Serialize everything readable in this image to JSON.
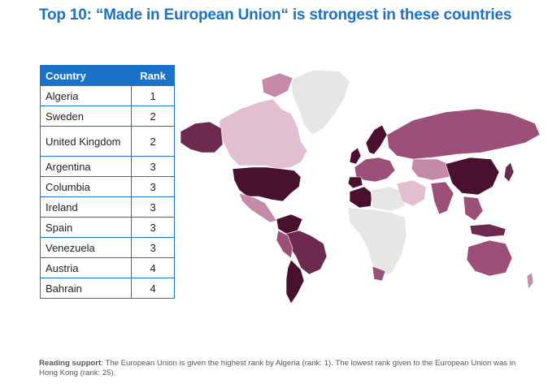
{
  "title": "Top 10: “Made in European Union“ is strongest in these countries",
  "chart_data": {
    "type": "table",
    "columns": [
      "Country",
      "Rank"
    ],
    "rows": [
      {
        "country": "Algeria",
        "rank": "1"
      },
      {
        "country": "Sweden",
        "rank": "2"
      },
      {
        "country": "United Kingdom",
        "rank": "2"
      },
      {
        "country": "Argentina",
        "rank": "3"
      },
      {
        "country": "Columbia",
        "rank": "3"
      },
      {
        "country": "Ireland",
        "rank": "3"
      },
      {
        "country": "Spain",
        "rank": "3"
      },
      {
        "country": "Venezuela",
        "rank": "3"
      },
      {
        "country": "Austria",
        "rank": "4"
      },
      {
        "country": "Bahrain",
        "rank": "4"
      }
    ]
  },
  "map_colors": {
    "darkest": "#4a1030",
    "dark": "#6e2a4e",
    "medium": "#9c4f78",
    "light": "#c48aa8",
    "lightest": "#e2bfd0",
    "no_data": "#e6e6e6"
  },
  "footnote": {
    "label": "Reading support",
    "text": ": The European Union is given the highest rank by Algeria (rank: 1). The lowest rank given to the European Union was in Hong Kong (rank: 25)."
  }
}
